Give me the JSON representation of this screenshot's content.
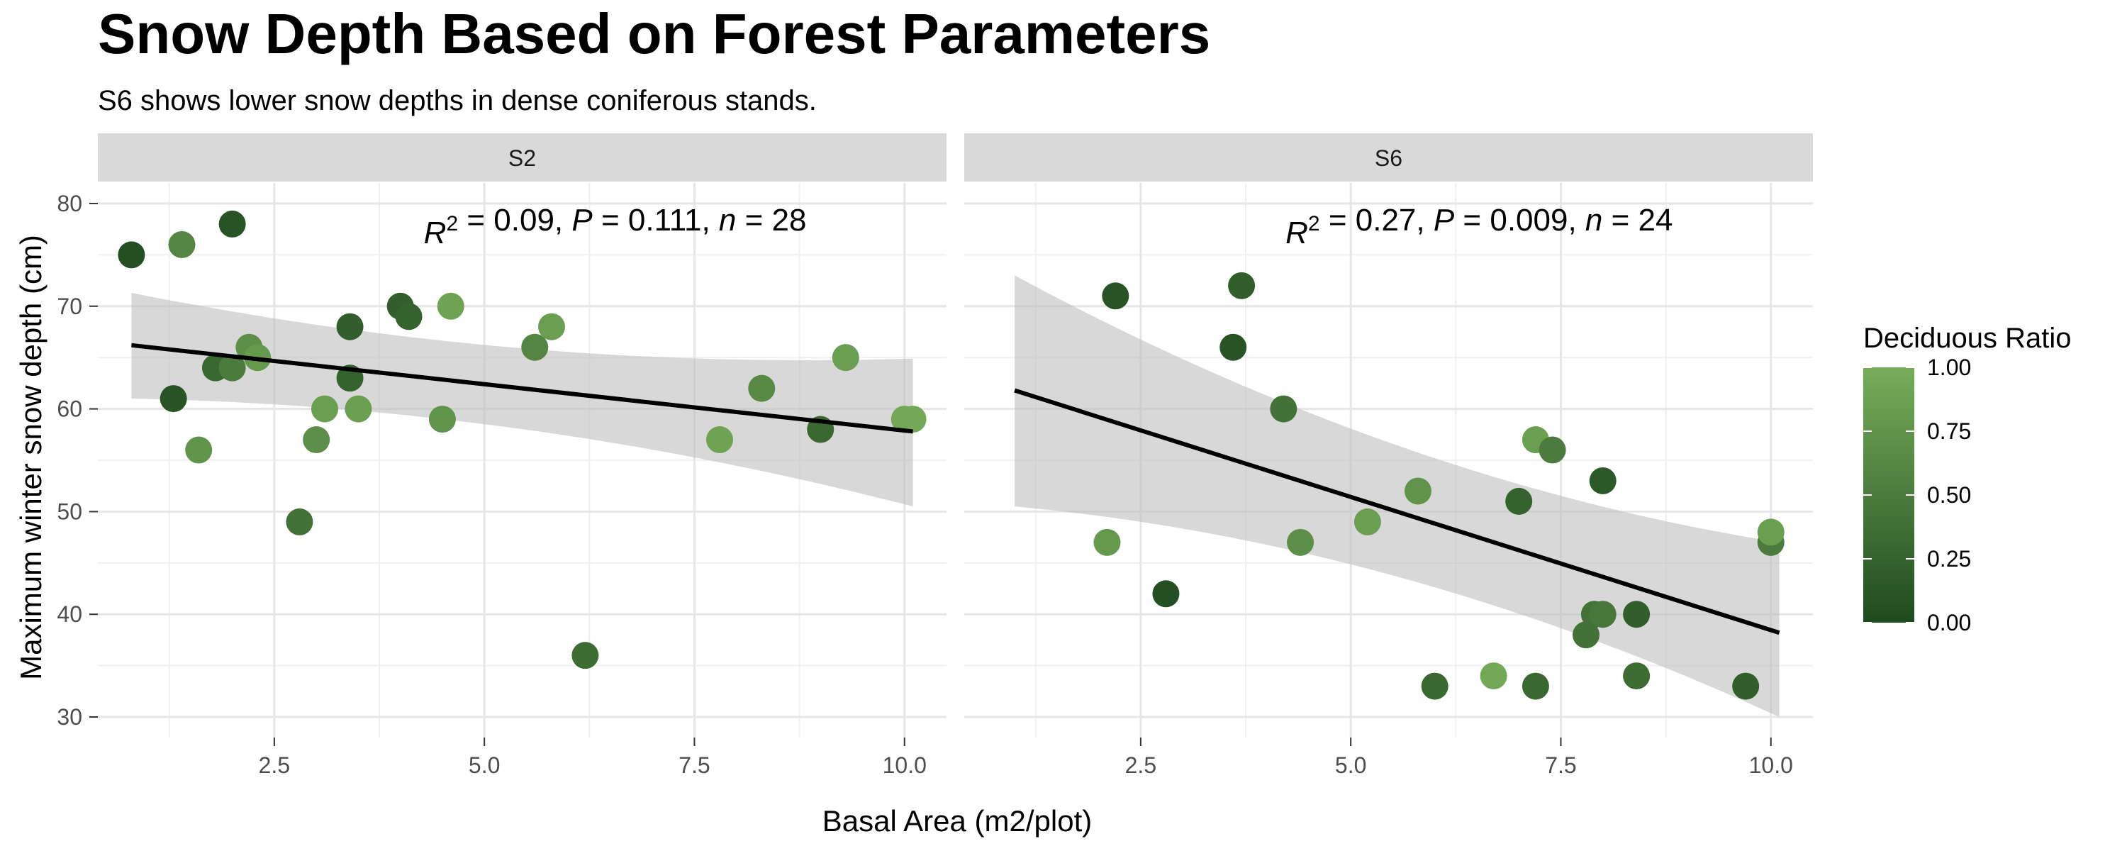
{
  "chart_data": {
    "type": "scatter",
    "title": "Snow Depth Based on Forest Parameters",
    "subtitle": "S6 shows lower snow depths in dense coniferous stands.",
    "xlabel": "Basal Area (m2/plot)",
    "ylabel": "Maximum winter snow depth (cm)",
    "xlim": [
      0.4,
      10.5
    ],
    "ylim": [
      28,
      82
    ],
    "x_ticks": [
      2.5,
      5.0,
      7.5,
      10.0
    ],
    "x_tick_labels": [
      "2.5",
      "5.0",
      "7.5",
      "10.0"
    ],
    "y_ticks": [
      30,
      40,
      50,
      60,
      70,
      80
    ],
    "y_tick_labels": [
      "30",
      "40",
      "50",
      "60",
      "70",
      "80"
    ],
    "grid": true,
    "legend": {
      "title": "Deciduous Ratio",
      "placement": "right",
      "ticks": [
        0.0,
        0.25,
        0.5,
        0.75,
        1.0
      ],
      "tick_labels": [
        "0.00",
        "0.25",
        "0.50",
        "0.75",
        "1.00"
      ],
      "color_low": "#1f4a1f",
      "color_high": "#77ad5a"
    },
    "trend_color": "#000000",
    "ci_color": "#bebebe",
    "panels": [
      {
        "name": "S2",
        "stats": {
          "r2": "0.09",
          "p": "0.111",
          "n": "28"
        },
        "fit": {
          "x": [
            0.8,
            10.1
          ],
          "y": [
            66.2,
            57.8
          ],
          "ci_lower": [
            61.0,
            50.5
          ],
          "ci_upper": [
            71.3,
            64.9
          ]
        },
        "points": [
          {
            "x": 0.8,
            "y": 75,
            "ratio": 0.05
          },
          {
            "x": 1.4,
            "y": 76,
            "ratio": 0.6
          },
          {
            "x": 2.0,
            "y": 78,
            "ratio": 0.1
          },
          {
            "x": 1.3,
            "y": 61,
            "ratio": 0.1
          },
          {
            "x": 1.6,
            "y": 56,
            "ratio": 0.75
          },
          {
            "x": 1.8,
            "y": 64,
            "ratio": 0.3
          },
          {
            "x": 2.0,
            "y": 64,
            "ratio": 0.5
          },
          {
            "x": 2.2,
            "y": 66,
            "ratio": 0.7
          },
          {
            "x": 2.3,
            "y": 65,
            "ratio": 0.8
          },
          {
            "x": 2.8,
            "y": 49,
            "ratio": 0.4
          },
          {
            "x": 3.0,
            "y": 57,
            "ratio": 0.7
          },
          {
            "x": 3.1,
            "y": 60,
            "ratio": 0.85
          },
          {
            "x": 3.4,
            "y": 68,
            "ratio": 0.2
          },
          {
            "x": 3.4,
            "y": 63,
            "ratio": 0.25
          },
          {
            "x": 3.5,
            "y": 60,
            "ratio": 0.85
          },
          {
            "x": 4.0,
            "y": 70,
            "ratio": 0.2
          },
          {
            "x": 4.1,
            "y": 69,
            "ratio": 0.25
          },
          {
            "x": 4.5,
            "y": 59,
            "ratio": 0.75
          },
          {
            "x": 4.6,
            "y": 70,
            "ratio": 0.9
          },
          {
            "x": 5.6,
            "y": 66,
            "ratio": 0.6
          },
          {
            "x": 5.8,
            "y": 68,
            "ratio": 0.85
          },
          {
            "x": 6.2,
            "y": 36,
            "ratio": 0.35
          },
          {
            "x": 7.8,
            "y": 57,
            "ratio": 0.9
          },
          {
            "x": 8.3,
            "y": 62,
            "ratio": 0.65
          },
          {
            "x": 9.0,
            "y": 58,
            "ratio": 0.3
          },
          {
            "x": 9.3,
            "y": 65,
            "ratio": 0.85
          },
          {
            "x": 10.0,
            "y": 59,
            "ratio": 0.95
          },
          {
            "x": 10.1,
            "y": 59,
            "ratio": 0.95
          }
        ]
      },
      {
        "name": "S6",
        "stats": {
          "r2": "0.27",
          "p": "0.009",
          "n": "24"
        },
        "fit": {
          "x": [
            1.0,
            10.1
          ],
          "y": [
            61.8,
            38.2
          ],
          "ci_lower": [
            50.5,
            30.0
          ],
          "ci_upper": [
            73.0,
            47.0
          ]
        },
        "points": [
          {
            "x": 2.2,
            "y": 71,
            "ratio": 0.1
          },
          {
            "x": 3.7,
            "y": 72,
            "ratio": 0.2
          },
          {
            "x": 3.6,
            "y": 66,
            "ratio": 0.1
          },
          {
            "x": 2.1,
            "y": 47,
            "ratio": 0.8
          },
          {
            "x": 2.8,
            "y": 42,
            "ratio": 0.05
          },
          {
            "x": 4.2,
            "y": 60,
            "ratio": 0.4
          },
          {
            "x": 4.4,
            "y": 47,
            "ratio": 0.7
          },
          {
            "x": 5.2,
            "y": 49,
            "ratio": 0.85
          },
          {
            "x": 5.8,
            "y": 52,
            "ratio": 0.75
          },
          {
            "x": 6.0,
            "y": 33,
            "ratio": 0.3
          },
          {
            "x": 6.7,
            "y": 34,
            "ratio": 0.95
          },
          {
            "x": 7.0,
            "y": 51,
            "ratio": 0.25
          },
          {
            "x": 7.2,
            "y": 57,
            "ratio": 0.85
          },
          {
            "x": 7.2,
            "y": 33,
            "ratio": 0.3
          },
          {
            "x": 7.4,
            "y": 56,
            "ratio": 0.5
          },
          {
            "x": 7.8,
            "y": 38,
            "ratio": 0.4
          },
          {
            "x": 7.9,
            "y": 40,
            "ratio": 0.4
          },
          {
            "x": 8.0,
            "y": 40,
            "ratio": 0.45
          },
          {
            "x": 8.0,
            "y": 53,
            "ratio": 0.15
          },
          {
            "x": 8.4,
            "y": 40,
            "ratio": 0.2
          },
          {
            "x": 8.4,
            "y": 34,
            "ratio": 0.35
          },
          {
            "x": 9.7,
            "y": 33,
            "ratio": 0.2
          },
          {
            "x": 10.0,
            "y": 47,
            "ratio": 0.5
          },
          {
            "x": 10.0,
            "y": 48,
            "ratio": 0.85
          }
        ]
      }
    ]
  }
}
